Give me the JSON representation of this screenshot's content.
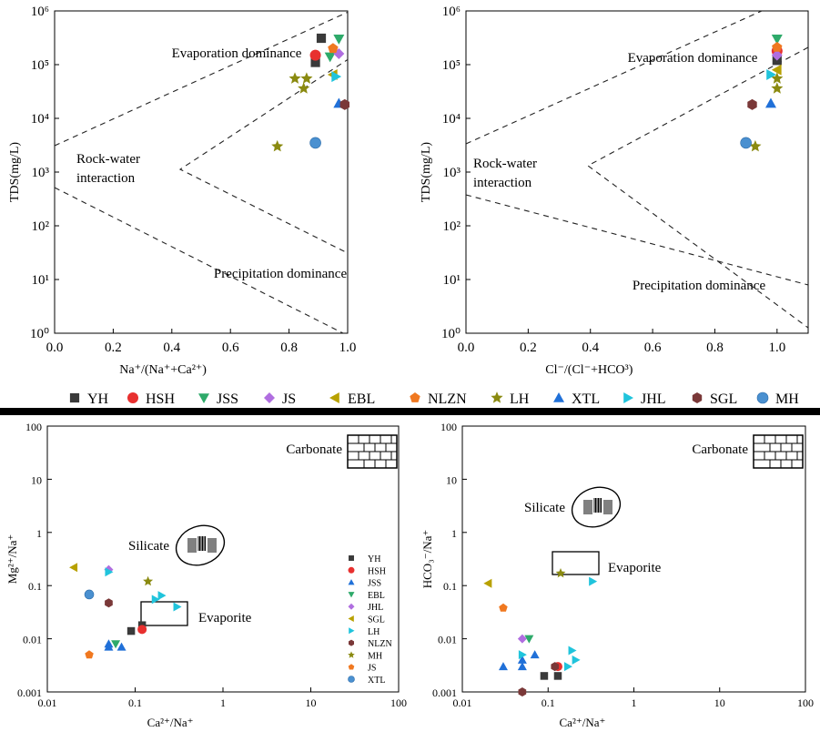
{
  "chart_data": [
    {
      "type": "scatter",
      "xscale": "linear",
      "yscale": "log",
      "xlabel": "Na⁺/(Na⁺+Ca²⁺)",
      "ylabel": "TDS(mg/L)",
      "xlim": [
        0,
        1.0
      ],
      "ylim": [
        1,
        1000000
      ],
      "xticks": [
        "0.0",
        "0.2",
        "0.4",
        "0.6",
        "0.8",
        "1.0"
      ],
      "yticks": [
        "10⁰",
        "10¹",
        "10²",
        "10³",
        "10⁴",
        "10⁵",
        "10⁶"
      ],
      "annotations": [
        "Evaporation dominance",
        "Rock-water",
        "interaction",
        "Precipitation dominance"
      ],
      "series": [
        {
          "name": "YH",
          "marker": "square",
          "color": "#3a3a3a",
          "points": [
            [
              0.91,
              310000
            ],
            [
              0.89,
              110000
            ]
          ]
        },
        {
          "name": "HSH",
          "marker": "circle",
          "color": "#e8302f",
          "points": [
            [
              0.89,
              150000
            ]
          ]
        },
        {
          "name": "JSS",
          "marker": "tri-down",
          "color": "#2eaa6a",
          "points": [
            [
              0.97,
              300000
            ],
            [
              0.94,
              140000
            ]
          ]
        },
        {
          "name": "JS",
          "marker": "diamond",
          "color": "#b06ee0",
          "points": [
            [
              0.97,
              160000
            ]
          ]
        },
        {
          "name": "EBL",
          "marker": "tri-left",
          "color": "#b8a100",
          "points": [
            [
              0.95,
              65000
            ]
          ]
        },
        {
          "name": "NLZN",
          "marker": "pentagon",
          "color": "#f07820",
          "points": [
            [
              0.95,
              200000
            ]
          ]
        },
        {
          "name": "LH",
          "marker": "star",
          "color": "#8a8a10",
          "points": [
            [
              0.82,
              55000
            ],
            [
              0.86,
              55000
            ],
            [
              0.85,
              36000
            ],
            [
              0.76,
              3000
            ]
          ]
        },
        {
          "name": "XTL",
          "marker": "tri-up",
          "color": "#2070d8",
          "points": [
            [
              0.97,
              19000
            ]
          ]
        },
        {
          "name": "JHL",
          "marker": "tri-right",
          "color": "#20c4dc",
          "points": [
            [
              0.96,
              60000
            ]
          ]
        },
        {
          "name": "SGL",
          "marker": "hexagon",
          "color": "#7a3838",
          "points": [
            [
              0.99,
              18000
            ]
          ]
        },
        {
          "name": "MH",
          "marker": "sphere",
          "color": "#4a90d0",
          "points": [
            [
              0.89,
              3500
            ]
          ]
        }
      ]
    },
    {
      "type": "scatter",
      "xscale": "linear",
      "yscale": "log",
      "xlabel": "Cl⁻/(Cl⁻+HCO³)",
      "ylabel": "TDS(mg/L)",
      "xlim": [
        0,
        1.1
      ],
      "ylim": [
        1,
        1000000
      ],
      "xticks": [
        "0.0",
        "0.2",
        "0.4",
        "0.6",
        "0.8",
        "1.0"
      ],
      "yticks": [
        "10⁰",
        "10¹",
        "10²",
        "10³",
        "10⁴",
        "10⁵",
        "10⁶"
      ],
      "annotations": [
        "Evaporation dominance",
        "Rock-water",
        "interaction",
        "Precipitation dominance"
      ],
      "series": [
        {
          "name": "YH",
          "marker": "square",
          "color": "#3a3a3a",
          "points": [
            [
              1.0,
              120000
            ]
          ]
        },
        {
          "name": "HSH",
          "marker": "circle",
          "color": "#e8302f",
          "points": [
            [
              1.0,
              180000
            ]
          ]
        },
        {
          "name": "JSS",
          "marker": "tri-down",
          "color": "#2eaa6a",
          "points": [
            [
              1.0,
              300000
            ]
          ]
        },
        {
          "name": "JS",
          "marker": "diamond",
          "color": "#b06ee0",
          "points": [
            [
              1.0,
              150000
            ]
          ]
        },
        {
          "name": "EBL",
          "marker": "tri-left",
          "color": "#b8a100",
          "points": [
            [
              1.0,
              80000
            ]
          ]
        },
        {
          "name": "NLZN",
          "marker": "pentagon",
          "color": "#f07820",
          "points": [
            [
              1.0,
              210000
            ]
          ]
        },
        {
          "name": "LH",
          "marker": "star",
          "color": "#8a8a10",
          "points": [
            [
              1.0,
              55000
            ],
            [
              1.0,
              36000
            ],
            [
              0.93,
              3000
            ]
          ]
        },
        {
          "name": "XTL",
          "marker": "tri-up",
          "color": "#2070d8",
          "points": [
            [
              0.98,
              19000
            ]
          ]
        },
        {
          "name": "JHL",
          "marker": "tri-right",
          "color": "#20c4dc",
          "points": [
            [
              0.98,
              65000
            ]
          ]
        },
        {
          "name": "SGL",
          "marker": "hexagon",
          "color": "#7a3838",
          "points": [
            [
              0.92,
              18000
            ]
          ]
        },
        {
          "name": "MH",
          "marker": "sphere",
          "color": "#4a90d0",
          "points": [
            [
              0.9,
              3500
            ]
          ]
        }
      ]
    },
    {
      "type": "scatter",
      "xscale": "log",
      "yscale": "log",
      "xlabel": "Ca²⁺/Na⁺",
      "ylabel": "Mg²⁺/Na⁺",
      "xlim": [
        0.01,
        100
      ],
      "ylim": [
        0.001,
        100
      ],
      "xticks": [
        "0.01",
        "0.1",
        "1",
        "10",
        "100"
      ],
      "yticks": [
        "0.001",
        "0.01",
        "0.1",
        "1",
        "10",
        "100"
      ],
      "annotations": [
        "Carbonate",
        "Silicate",
        "Evaporite"
      ],
      "legend_position": "right",
      "series": [
        {
          "name": "YH",
          "marker": "square",
          "color": "#3a3a3a",
          "points": [
            [
              0.09,
              0.014
            ],
            [
              0.12,
              0.018
            ]
          ]
        },
        {
          "name": "HSH",
          "marker": "circle",
          "color": "#e8302f",
          "points": [
            [
              0.12,
              0.015
            ]
          ]
        },
        {
          "name": "JSS",
          "marker": "tri-up",
          "color": "#2070d8",
          "points": [
            [
              0.05,
              0.008
            ],
            [
              0.05,
              0.007
            ],
            [
              0.07,
              0.007
            ]
          ]
        },
        {
          "name": "EBL",
          "marker": "tri-down",
          "color": "#2eaa6a",
          "points": [
            [
              0.06,
              0.008
            ]
          ]
        },
        {
          "name": "JHL",
          "marker": "diamond",
          "color": "#b06ee0",
          "points": [
            [
              0.05,
              0.2
            ]
          ]
        },
        {
          "name": "SGL",
          "marker": "tri-left",
          "color": "#b8a100",
          "points": [
            [
              0.02,
              0.22
            ]
          ]
        },
        {
          "name": "LH",
          "marker": "tri-right",
          "color": "#20c4dc",
          "points": [
            [
              0.05,
              0.18
            ],
            [
              0.17,
              0.055
            ],
            [
              0.2,
              0.065
            ],
            [
              0.3,
              0.04
            ]
          ]
        },
        {
          "name": "NLZN",
          "marker": "hexagon",
          "color": "#7a3838",
          "points": [
            [
              0.05,
              0.047
            ]
          ]
        },
        {
          "name": "MH",
          "marker": "star",
          "color": "#8a8a10",
          "points": [
            [
              0.14,
              0.12
            ]
          ]
        },
        {
          "name": "JS",
          "marker": "pentagon",
          "color": "#f07820",
          "points": [
            [
              0.03,
              0.005
            ]
          ]
        },
        {
          "name": "XTL",
          "marker": "sphere",
          "color": "#4a90d0",
          "points": [
            [
              0.03,
              0.068
            ]
          ]
        }
      ]
    },
    {
      "type": "scatter",
      "xscale": "log",
      "yscale": "log",
      "xlabel": "Ca²⁺/Na⁺",
      "ylabel": "HCO₃⁻/Na⁺",
      "xlim": [
        0.01,
        100
      ],
      "ylim": [
        0.001,
        100
      ],
      "xticks": [
        "0.01",
        "0.1",
        "1",
        "10",
        "100"
      ],
      "yticks": [
        "0.001",
        "0.01",
        "0.1",
        "1",
        "10",
        "100"
      ],
      "annotations": [
        "Carbonate",
        "Silicate",
        "Evaporite"
      ],
      "series": [
        {
          "name": "YH",
          "marker": "square",
          "color": "#3a3a3a",
          "points": [
            [
              0.09,
              0.002
            ],
            [
              0.13,
              0.002
            ]
          ]
        },
        {
          "name": "HSH",
          "marker": "circle",
          "color": "#e8302f",
          "points": [
            [
              0.13,
              0.003
            ]
          ]
        },
        {
          "name": "JSS",
          "marker": "tri-up",
          "color": "#2070d8",
          "points": [
            [
              0.03,
              0.003
            ],
            [
              0.05,
              0.003
            ],
            [
              0.05,
              0.004
            ],
            [
              0.07,
              0.005
            ]
          ]
        },
        {
          "name": "EBL",
          "marker": "tri-down",
          "color": "#2eaa6a",
          "points": [
            [
              0.06,
              0.01
            ]
          ]
        },
        {
          "name": "JHL",
          "marker": "diamond",
          "color": "#b06ee0",
          "points": [
            [
              0.05,
              0.01
            ]
          ]
        },
        {
          "name": "SGL",
          "marker": "tri-left",
          "color": "#b8a100",
          "points": [
            [
              0.02,
              0.11
            ]
          ]
        },
        {
          "name": "LH",
          "marker": "tri-right",
          "color": "#20c4dc",
          "points": [
            [
              0.05,
              0.005
            ],
            [
              0.17,
              0.003
            ],
            [
              0.19,
              0.006
            ],
            [
              0.21,
              0.004
            ],
            [
              0.33,
              0.12
            ]
          ]
        },
        {
          "name": "NLZN",
          "marker": "hexagon",
          "color": "#7a3838",
          "points": [
            [
              0.05,
              0.001
            ],
            [
              0.12,
              0.003
            ]
          ]
        },
        {
          "name": "MH",
          "marker": "star",
          "color": "#8a8a10",
          "points": [
            [
              0.14,
              0.17
            ]
          ]
        },
        {
          "name": "JS",
          "marker": "pentagon",
          "color": "#f07820",
          "points": [
            [
              0.03,
              0.038
            ]
          ]
        }
      ]
    }
  ],
  "shared_legend": [
    {
      "name": "YH",
      "marker": "square",
      "color": "#3a3a3a"
    },
    {
      "name": "HSH",
      "marker": "circle",
      "color": "#e8302f"
    },
    {
      "name": "JSS",
      "marker": "tri-down",
      "color": "#2eaa6a"
    },
    {
      "name": "JS",
      "marker": "diamond",
      "color": "#b06ee0"
    },
    {
      "name": "EBL",
      "marker": "tri-left",
      "color": "#b8a100"
    },
    {
      "name": "NLZN",
      "marker": "pentagon",
      "color": "#f07820"
    },
    {
      "name": "LH",
      "marker": "star",
      "color": "#8a8a10"
    },
    {
      "name": "XTL",
      "marker": "tri-up",
      "color": "#2070d8"
    },
    {
      "name": "JHL",
      "marker": "tri-right",
      "color": "#20c4dc"
    },
    {
      "name": "SGL",
      "marker": "hexagon",
      "color": "#7a3838"
    },
    {
      "name": "MH",
      "marker": "sphere",
      "color": "#4a90d0"
    }
  ]
}
